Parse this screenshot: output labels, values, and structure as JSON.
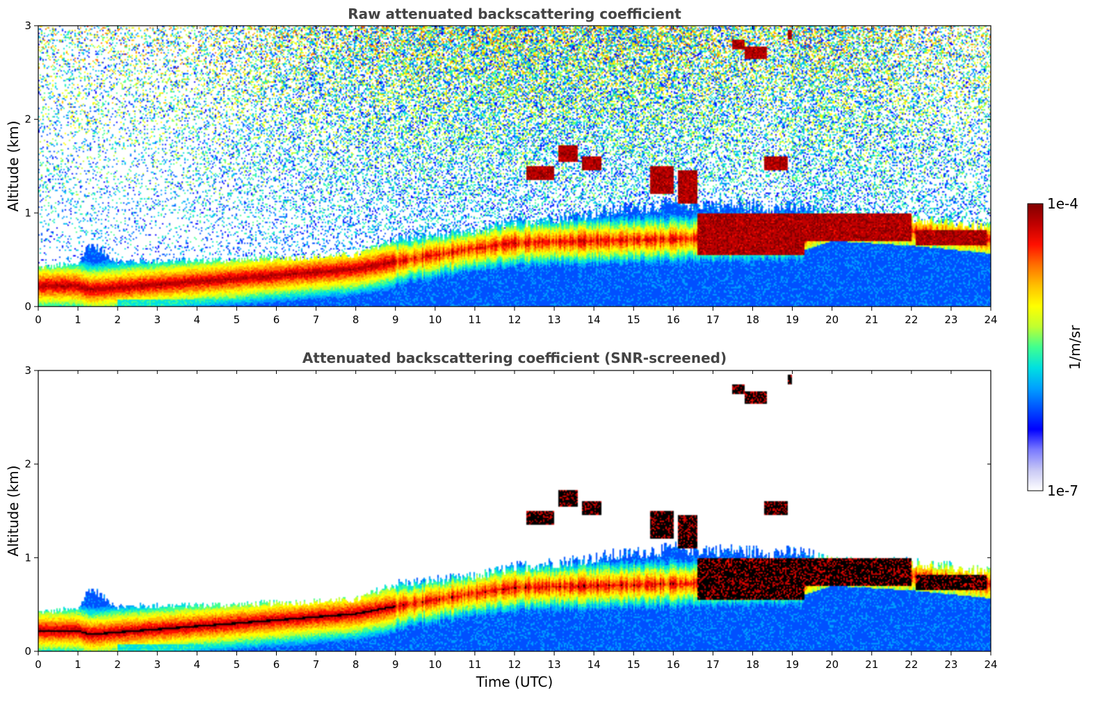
{
  "colormap": [
    "#ffffff",
    "#c8c8f5",
    "#7a7aff",
    "#0000ff",
    "#0050ff",
    "#00a0ff",
    "#00e0e0",
    "#40ff90",
    "#c0ff30",
    "#ffff00",
    "#ffc000",
    "#ff7000",
    "#ff1000",
    "#c00000",
    "#800000"
  ],
  "colorbar": {
    "label": "1/m/sr",
    "max_label": "1e-4",
    "min_label": "1e-7",
    "max_value": 0.0001,
    "min_value": 1e-07,
    "scale": "log"
  },
  "chart_data": [
    {
      "type": "heatmap",
      "title": "Raw attenuated backscattering coefficient",
      "xlabel": "",
      "ylabel": "Altitude (km)",
      "xlim": [
        0,
        24
      ],
      "ylim": [
        0,
        3
      ],
      "xticks": [
        "0",
        "1",
        "2",
        "3",
        "4",
        "5",
        "6",
        "7",
        "8",
        "9",
        "10",
        "11",
        "12",
        "13",
        "14",
        "15",
        "16",
        "17",
        "18",
        "19",
        "20",
        "21",
        "22",
        "23",
        "24"
      ],
      "yticks": [
        "0",
        "1",
        "2",
        "3"
      ],
      "screened": false
    },
    {
      "type": "heatmap",
      "title": "Attenuated backscattering coefficient (SNR-screened)",
      "xlabel": "Time (UTC)",
      "ylabel": "Altitude (km)",
      "xlim": [
        0,
        24
      ],
      "ylim": [
        0,
        3
      ],
      "xticks": [
        "0",
        "1",
        "2",
        "3",
        "4",
        "5",
        "6",
        "7",
        "8",
        "9",
        "10",
        "11",
        "12",
        "13",
        "14",
        "15",
        "16",
        "17",
        "18",
        "19",
        "20",
        "21",
        "22",
        "23",
        "24"
      ],
      "yticks": [
        "0",
        "1",
        "2",
        "3"
      ],
      "screened": true
    }
  ],
  "features": {
    "boundary_layer_top_km": [
      [
        0,
        0.42
      ],
      [
        1,
        0.45
      ],
      [
        1.3,
        0.68
      ],
      [
        2,
        0.48
      ],
      [
        5,
        0.5
      ],
      [
        8,
        0.55
      ],
      [
        9,
        0.72
      ],
      [
        11,
        0.8
      ],
      [
        12,
        0.9
      ],
      [
        14,
        1.0
      ],
      [
        16,
        1.1
      ],
      [
        19.3,
        1.05
      ],
      [
        20,
        0.95
      ],
      [
        22,
        0.95
      ],
      [
        23.9,
        0.85
      ]
    ],
    "aerosol_peak_km": [
      [
        0,
        0.22
      ],
      [
        1,
        0.22
      ],
      [
        1.3,
        0.18
      ],
      [
        5,
        0.3
      ],
      [
        8,
        0.4
      ],
      [
        9,
        0.48
      ],
      [
        10,
        0.55
      ],
      [
        11,
        0.62
      ],
      [
        12,
        0.68
      ],
      [
        14,
        0.7
      ],
      [
        16,
        0.72
      ],
      [
        19.3,
        0.75
      ],
      [
        20,
        0.85
      ],
      [
        22,
        0.8
      ],
      [
        23.9,
        0.72
      ]
    ],
    "cloud_layers": [
      {
        "t0": 12.3,
        "t1": 13.0,
        "z0": 1.35,
        "z1": 1.5
      },
      {
        "t0": 13.1,
        "t1": 13.6,
        "z0": 1.55,
        "z1": 1.72
      },
      {
        "t0": 13.7,
        "t1": 14.2,
        "z0": 1.45,
        "z1": 1.6
      },
      {
        "t0": 15.4,
        "t1": 16.0,
        "z0": 1.2,
        "z1": 1.5
      },
      {
        "t0": 16.1,
        "t1": 16.6,
        "z0": 1.1,
        "z1": 1.45
      },
      {
        "t0": 18.3,
        "t1": 18.9,
        "z0": 1.45,
        "z1": 1.6
      },
      {
        "t0": 17.5,
        "t1": 17.8,
        "z0": 2.75,
        "z1": 2.85
      },
      {
        "t0": 17.8,
        "t1": 18.35,
        "z0": 2.65,
        "z1": 2.78
      },
      {
        "t0": 18.9,
        "t1": 19.0,
        "z0": 2.85,
        "z1": 2.95
      },
      {
        "t0": 16.6,
        "t1": 19.3,
        "z0": 0.55,
        "z1": 1.0
      },
      {
        "t0": 19.3,
        "t1": 22.0,
        "z0": 0.7,
        "z1": 1.0
      },
      {
        "t0": 22.1,
        "t1": 23.9,
        "z0": 0.65,
        "z1": 0.82
      }
    ]
  }
}
